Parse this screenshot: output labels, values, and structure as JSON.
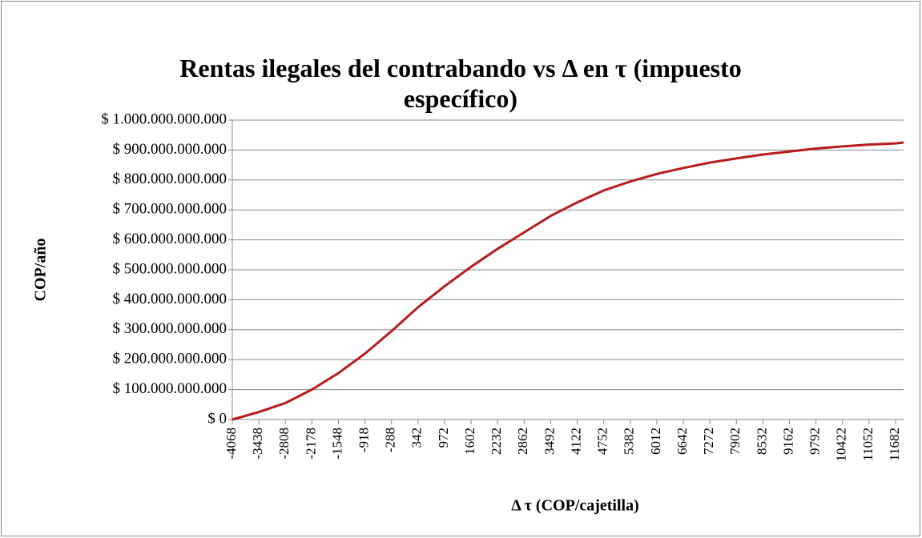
{
  "chart_data": {
    "type": "line",
    "title": "Rentas ilegales del contrabando vs Δ en τ (impuesto específico)",
    "x_label": "Δ τ (COP/cajetilla)",
    "y_label": "COP/año",
    "x": [
      -4068,
      -3438,
      -2808,
      -2178,
      -1548,
      -918,
      -288,
      342,
      972,
      1602,
      2232,
      2862,
      3492,
      4122,
      4752,
      5382,
      6012,
      6642,
      7272,
      7902,
      8532,
      9162,
      9792,
      10422,
      11052,
      11682,
      11872
    ],
    "series": [
      {
        "name": "Rentas ilegales",
        "color": "#b81c1c",
        "values": [
          0,
          25000000000,
          55000000000,
          100000000000,
          155000000000,
          220000000000,
          295000000000,
          375000000000,
          445000000000,
          510000000000,
          570000000000,
          625000000000,
          680000000000,
          725000000000,
          765000000000,
          795000000000,
          820000000000,
          840000000000,
          858000000000,
          872000000000,
          885000000000,
          895000000000,
          905000000000,
          912000000000,
          918000000000,
          922000000000,
          925000000000
        ]
      }
    ],
    "xlim": [
      -4068,
      11872
    ],
    "xticks": [
      -4068,
      -3438,
      -2808,
      -2178,
      -1548,
      -918,
      -288,
      342,
      972,
      1602,
      2232,
      2862,
      3492,
      4122,
      4752,
      5382,
      6012,
      6642,
      7272,
      7902,
      8532,
      9162,
      9792,
      10422,
      11052,
      11682
    ],
    "ylim": [
      0,
      1000000000000
    ],
    "yticks": [
      {
        "value": 0,
        "label": "$ 0"
      },
      {
        "value": 100000000000,
        "label": "$ 100.000.000.000"
      },
      {
        "value": 200000000000,
        "label": "$ 200.000.000.000"
      },
      {
        "value": 300000000000,
        "label": "$ 300.000.000.000"
      },
      {
        "value": 400000000000,
        "label": "$ 400.000.000.000"
      },
      {
        "value": 500000000000,
        "label": "$ 500.000.000.000"
      },
      {
        "value": 600000000000,
        "label": "$ 600.000.000.000"
      },
      {
        "value": 700000000000,
        "label": "$ 700.000.000.000"
      },
      {
        "value": 800000000000,
        "label": "$ 800.000.000.000"
      },
      {
        "value": 900000000000,
        "label": "$ 900.000.000.000"
      },
      {
        "value": 1000000000000,
        "label": "$ 1.000.000.000.000"
      }
    ],
    "grid": true
  }
}
